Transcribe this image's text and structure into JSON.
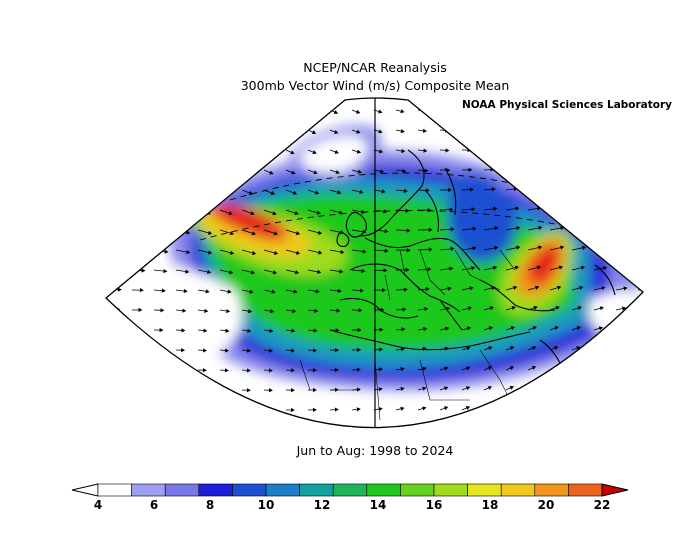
{
  "title_line1": "NCEP/NCAR Reanalysis",
  "title_line2": "300mb Vector Wind (m/s) Composite Mean",
  "organization": "NOAA Physical Sciences Laboratory",
  "period": "Jun to Aug: 1998 to 2024",
  "colorbar": {
    "ticks": [
      "4",
      "6",
      "8",
      "10",
      "12",
      "14",
      "16",
      "18",
      "20",
      "22"
    ],
    "colors": [
      "#ffffff",
      "#a0a0f0",
      "#7878e6",
      "#1e1edc",
      "#1e50d2",
      "#1e7ec8",
      "#14a0a0",
      "#1eb45a",
      "#1ec81e",
      "#64d21e",
      "#a0dc1e",
      "#e6e61e",
      "#f0c81e",
      "#f0961e",
      "#eb641e",
      "#e61e1e",
      "#c80000"
    ]
  },
  "map": {
    "projection": "lambert-conic",
    "region": "Europe / North Atlantic / North Africa",
    "field": "300mb vector wind speed",
    "units": "m/s"
  }
}
